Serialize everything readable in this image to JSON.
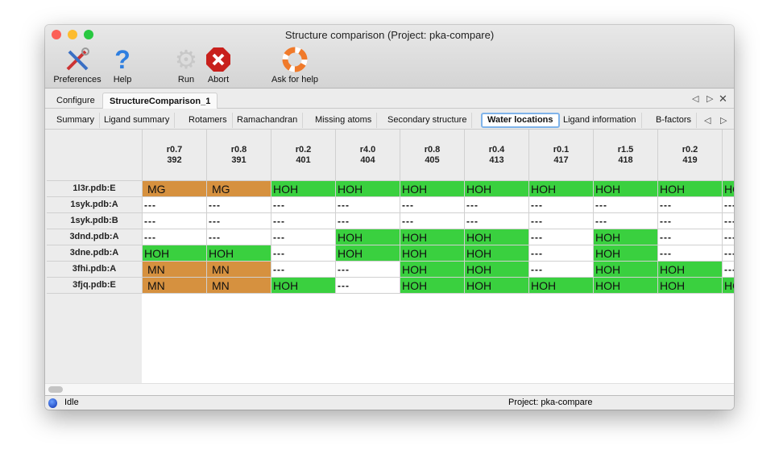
{
  "window": {
    "title": "Structure comparison (Project: pka-compare)"
  },
  "toolbar": [
    {
      "label": "Preferences",
      "icon": "tools-icon"
    },
    {
      "label": "Help",
      "icon": "question-icon"
    },
    {
      "label": "Run",
      "icon": "gear-icon"
    },
    {
      "label": "Abort",
      "icon": "abort-icon"
    },
    {
      "label": "Ask for help",
      "icon": "lifebuoy-icon"
    }
  ],
  "top_tabs": [
    "Configure",
    "StructureComparison_1"
  ],
  "active_top_tab": "StructureComparison_1",
  "sub_tabs": [
    "Summary",
    "Ligand summary",
    "Rotamers",
    "Ramachandran",
    "Missing atoms",
    "Secondary structure",
    "Water locations",
    "Ligand information",
    "B-factors"
  ],
  "active_sub_tab": "Water locations",
  "colors": {
    "metal": "#d6913f",
    "water": "#3ad03f"
  },
  "table": {
    "columns": [
      {
        "r": "r0.7",
        "n": "392"
      },
      {
        "r": "r0.8",
        "n": "391"
      },
      {
        "r": "r0.2",
        "n": "401"
      },
      {
        "r": "r4.0",
        "n": "404"
      },
      {
        "r": "r0.8",
        "n": "405"
      },
      {
        "r": "r0.4",
        "n": "413"
      },
      {
        "r": "r0.1",
        "n": "417"
      },
      {
        "r": "r1.5",
        "n": "418"
      },
      {
        "r": "r0.2",
        "n": "419"
      },
      {
        "r": "",
        "n": ""
      }
    ],
    "rows": [
      {
        "label": "1l3r.pdb:E",
        "cells": [
          "MG",
          "MG",
          "HOH",
          "HOH",
          "HOH",
          "HOH",
          "HOH",
          "HOH",
          "HOH",
          "HOH"
        ]
      },
      {
        "label": "1syk.pdb:A",
        "cells": [
          "---",
          "---",
          "---",
          "---",
          "---",
          "---",
          "---",
          "---",
          "---",
          "---"
        ]
      },
      {
        "label": "1syk.pdb:B",
        "cells": [
          "---",
          "---",
          "---",
          "---",
          "---",
          "---",
          "---",
          "---",
          "---",
          "---"
        ]
      },
      {
        "label": "3dnd.pdb:A",
        "cells": [
          "---",
          "---",
          "---",
          "HOH",
          "HOH",
          "HOH",
          "---",
          "HOH",
          "---",
          "---"
        ]
      },
      {
        "label": "3dne.pdb:A",
        "cells": [
          "HOH",
          "HOH",
          "---",
          "HOH",
          "HOH",
          "HOH",
          "---",
          "HOH",
          "---",
          "---"
        ]
      },
      {
        "label": "3fhi.pdb:A",
        "cells": [
          "MN",
          "MN",
          "---",
          "---",
          "HOH",
          "HOH",
          "---",
          "HOH",
          "HOH",
          "---"
        ]
      },
      {
        "label": "3fjq.pdb:E",
        "cells": [
          "MN",
          "MN",
          "HOH",
          "---",
          "HOH",
          "HOH",
          "HOH",
          "HOH",
          "HOH",
          "HOH"
        ]
      }
    ]
  },
  "status": {
    "state": "Idle",
    "project": "Project: pka-compare"
  }
}
